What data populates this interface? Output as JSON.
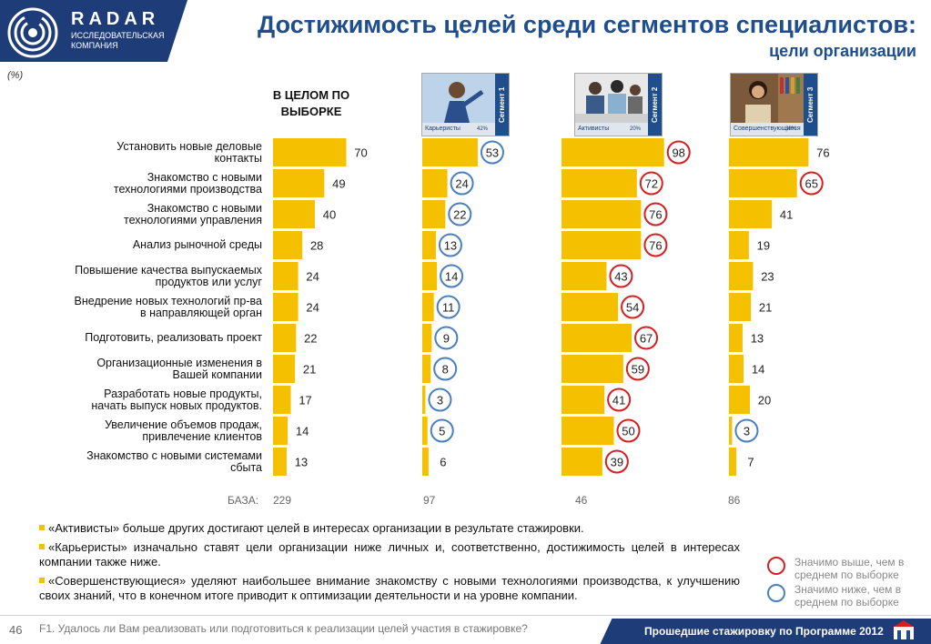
{
  "brand": {
    "name": "RADAR",
    "subtitle_line1": "ИССЛЕДОВАТЕЛЬСКАЯ",
    "subtitle_line2": "КОМПАНИЯ"
  },
  "header": {
    "title": "Достижимость целей среди сегментов специалистов:",
    "subtitle": "цели организации"
  },
  "unit_label": "(%)",
  "overall_heading": "В ЦЕЛОМ ПО ВЫБОРКЕ",
  "segments": [
    {
      "strip": "Сегмент 1",
      "caption": "Карьеристы",
      "share": "42%"
    },
    {
      "strip": "Сегмент 2",
      "caption": "Активисты",
      "share": "20%"
    },
    {
      "strip": "Сегмент 3",
      "caption": "Совершенствующиеся",
      "share": "38%"
    }
  ],
  "chart_data": {
    "type": "bar",
    "orientation": "horizontal",
    "categories": [
      [
        "Установить новые деловые",
        "контакты"
      ],
      [
        "Знакомство с новыми",
        "технологиями производства"
      ],
      [
        "Знакомство с новыми",
        "технологиями управления"
      ],
      [
        "Анализ рыночной среды"
      ],
      [
        "Повышение качества выпускаемых",
        "продуктов или услуг"
      ],
      [
        "Внедрение новых технологий пр-ва",
        "в направляющей орган"
      ],
      [
        "Подготовить, реализовать проект"
      ],
      [
        "Организационные изменения в",
        "Вашей компании"
      ],
      [
        "Разработать новые продукты,",
        "начать выпуск новых продуктов."
      ],
      [
        "Увеличение объемов продаж,",
        "привлечение клиентов"
      ],
      [
        "Знакомство с новыми системами",
        "сбыта"
      ]
    ],
    "series": [
      {
        "values": [
          70,
          49,
          40,
          28,
          24,
          24,
          22,
          21,
          17,
          14,
          13
        ],
        "marks": [
          "",
          "",
          "",
          "",
          "",
          "",
          "",
          "",
          "",
          "",
          ""
        ]
      },
      {
        "values": [
          53,
          24,
          22,
          13,
          14,
          11,
          9,
          8,
          3,
          5,
          6
        ],
        "marks": [
          "low",
          "low",
          "low",
          "low",
          "low",
          "low",
          "low",
          "low",
          "low",
          "low",
          ""
        ]
      },
      {
        "values": [
          98,
          72,
          76,
          76,
          43,
          54,
          67,
          59,
          41,
          50,
          39
        ],
        "marks": [
          "high",
          "high",
          "high",
          "high",
          "high",
          "high",
          "high",
          "high",
          "high",
          "high",
          "high"
        ]
      },
      {
        "values": [
          76,
          65,
          41,
          19,
          23,
          21,
          13,
          14,
          20,
          3,
          7
        ],
        "marks": [
          "",
          "high",
          "",
          "",
          "",
          "",
          "",
          "",
          "",
          "low",
          ""
        ]
      }
    ],
    "base_label": "БАЗА:",
    "bases": [
      "229",
      "97",
      "46",
      "86"
    ],
    "bar_color": "#f5c000",
    "high_color": "#d42020",
    "low_color": "#4a7fc0"
  },
  "notes": [
    "«Активисты» больше других достигают целей в интересах организации в результате стажировки.",
    "«Карьеристы» изначально ставят цели организации ниже личных и, соответственно, достижимость целей в интересах компании также ниже.",
    "«Совершенствующиеся» уделяют наибольшее внимание знакомству с новыми технологиями производства, к улучшению своих знаний, что в конечном итоге приводит к оптимизации деятельности и на уровне компании."
  ],
  "legend": {
    "high_line1": "Значимо выше, чем в",
    "high_line2": "среднем по выборке",
    "low_line1": "Значимо ниже, чем в",
    "low_line2": "среднем по выборке"
  },
  "footer": {
    "page_number": "46",
    "question": "F1. Удалось ли Вам реализовать или подготовиться к реализации целей участия в стажировке?",
    "program": "Прошедшие стажировку по Программе 2012"
  },
  "colors": {
    "brand_blue": "#1e3c78",
    "title_blue": "#1f4e8c"
  }
}
